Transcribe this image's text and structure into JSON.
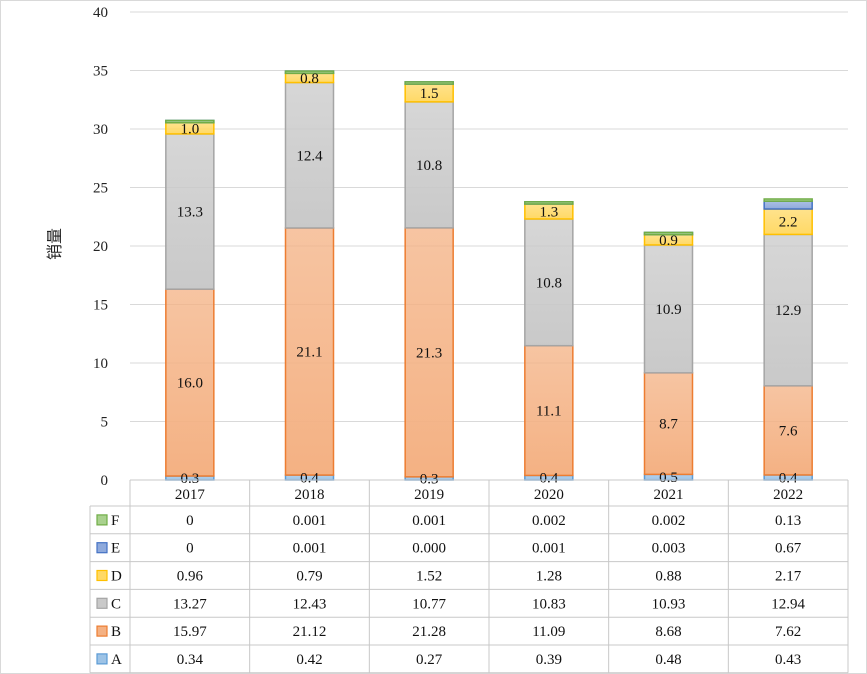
{
  "chart_data": {
    "type": "bar",
    "stacked": true,
    "title": "",
    "xlabel": "",
    "ylabel": "销量",
    "ylim": [
      0,
      40
    ],
    "yticks": [
      0,
      5,
      10,
      15,
      20,
      25,
      30,
      35,
      40
    ],
    "grid": true,
    "categories": [
      "2017",
      "2018",
      "2019",
      "2020",
      "2021",
      "2022"
    ],
    "series": [
      {
        "name": "A",
        "color": "#9dc3e6",
        "edge": "#5b9bd5",
        "values": [
          0.34,
          0.42,
          0.27,
          0.39,
          0.48,
          0.43
        ],
        "table": [
          "0.34",
          "0.42",
          "0.27",
          "0.39",
          "0.48",
          "0.43"
        ],
        "labels": [
          "0.3",
          "0.4",
          "0.3",
          "0.4",
          "0.5",
          "0.4"
        ]
      },
      {
        "name": "B",
        "color": "#f4b183",
        "edge": "#ed7d31",
        "values": [
          15.97,
          21.12,
          21.28,
          11.09,
          8.68,
          7.62
        ],
        "table": [
          "15.97",
          "21.12",
          "21.28",
          "11.09",
          "8.68",
          "7.62"
        ],
        "labels": [
          "16.0",
          "21.1",
          "21.3",
          "11.1",
          "8.7",
          "7.6"
        ]
      },
      {
        "name": "C",
        "color": "#c9c9c9",
        "edge": "#a5a5a5",
        "values": [
          13.27,
          12.43,
          10.77,
          10.83,
          10.93,
          12.94
        ],
        "table": [
          "13.27",
          "12.43",
          "10.77",
          "10.83",
          "10.93",
          "12.94"
        ],
        "labels": [
          "13.3",
          "12.4",
          "10.8",
          "10.8",
          "10.9",
          "12.9"
        ]
      },
      {
        "name": "D",
        "color": "#ffd966",
        "edge": "#ffc000",
        "values": [
          0.96,
          0.79,
          1.52,
          1.28,
          0.88,
          2.17
        ],
        "table": [
          "0.96",
          "0.79",
          "1.52",
          "1.28",
          "0.88",
          "2.17"
        ],
        "labels": [
          "1.0",
          "0.8",
          "1.5",
          "1.3",
          "0.9",
          "2.2"
        ]
      },
      {
        "name": "E",
        "color": "#8faadc",
        "edge": "#4472c4",
        "values": [
          0,
          0.001,
          0.0,
          0.001,
          0.003,
          0.67
        ],
        "table": [
          "0",
          "0.001",
          "0.000",
          "0.001",
          "0.003",
          "0.67"
        ],
        "labels": [
          "",
          "",
          "",
          "",
          "",
          ""
        ]
      },
      {
        "name": "F",
        "color": "#a9d18e",
        "edge": "#70ad47",
        "values": [
          0,
          0.001,
          0.001,
          0.002,
          0.002,
          0.13
        ],
        "table": [
          "0",
          "0.001",
          "0.001",
          "0.002",
          "0.002",
          "0.13"
        ],
        "labels": [
          "",
          "",
          "",
          "",
          "",
          ""
        ]
      }
    ]
  }
}
